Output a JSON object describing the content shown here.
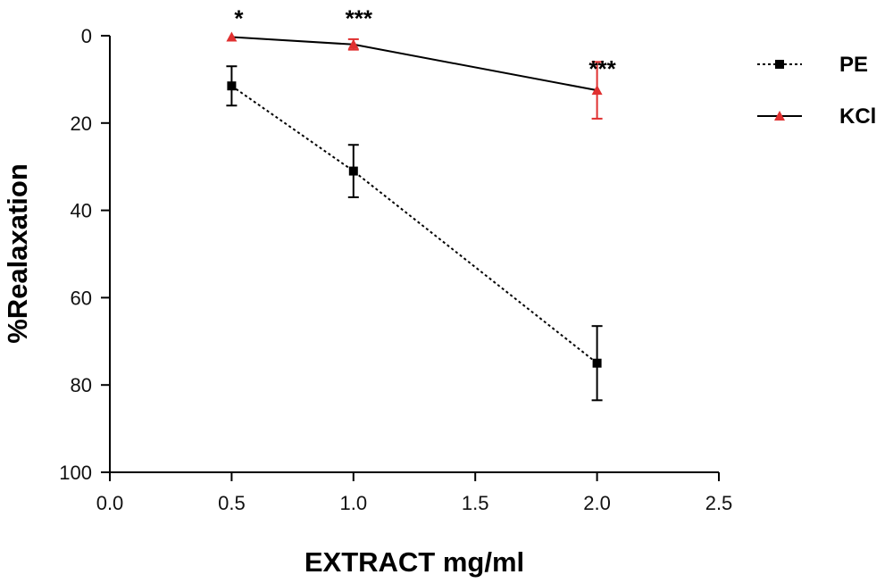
{
  "chart_data": {
    "type": "line",
    "title": "",
    "xlabel": "EXTRACT mg/ml",
    "ylabel": "%Realaxation",
    "xlim": [
      0.0,
      2.5
    ],
    "ylim": [
      0,
      100
    ],
    "y_inverted": true,
    "x_ticks": [
      "0.0",
      "0.5",
      "1.0",
      "1.5",
      "2.0",
      "2.5"
    ],
    "y_ticks": [
      "0",
      "20",
      "40",
      "60",
      "80",
      "100"
    ],
    "grid": false,
    "legend_position": "top-right",
    "series": [
      {
        "name": "PE",
        "x": [
          0.5,
          1.0,
          2.0
        ],
        "y": [
          11.5,
          31,
          75
        ],
        "error": [
          4.5,
          6,
          8.5
        ],
        "color": "#000000",
        "error_color": "#000000",
        "marker": "square",
        "line_style": "dotted"
      },
      {
        "name": "KCl",
        "x": [
          0.5,
          1.0,
          2.0
        ],
        "y": [
          0.3,
          2,
          12.5
        ],
        "error": [
          0,
          1.2,
          6.5
        ],
        "color": "#000000",
        "error_color": "#e03030",
        "marker": "triangle",
        "marker_color": "#e03030",
        "line_style": "solid"
      }
    ],
    "annotations": [
      {
        "text": "*",
        "x": 0.5,
        "y": -5
      },
      {
        "text": "***",
        "x": 1.0,
        "y": -5
      },
      {
        "text": "***",
        "x": 2.0,
        "y": 6.5
      }
    ]
  }
}
